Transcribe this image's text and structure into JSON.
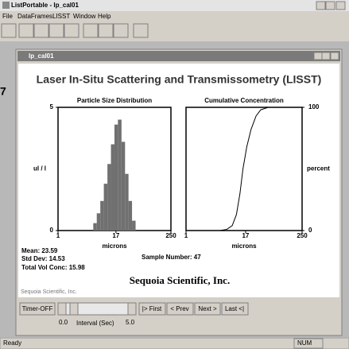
{
  "window": {
    "title": "ListPortable - lp_cal01"
  },
  "menu": [
    "File",
    "DataFrames",
    "LISST",
    "Window",
    "Help"
  ],
  "stray": "7",
  "inner_window": {
    "title": "lp_cal01"
  },
  "header": "Laser In-Situ Scattering and Transmissometry (LISST)",
  "chart_data": [
    {
      "type": "histogram",
      "title": "Particle Size Distribution",
      "ylabel": "ul / l",
      "xlabel": "microns",
      "log_x": true,
      "color": "#707070",
      "bins": [
        5.6,
        6.65,
        7.9,
        9.39,
        11.2,
        13.3,
        15.8,
        18.7,
        22.3,
        26.5,
        31.4,
        37.3,
        44.4
      ],
      "values": [
        0.3,
        0.7,
        1.2,
        1.9,
        2.7,
        3.5,
        4.3,
        4.5,
        3.6,
        2.3,
        1.2,
        0.4
      ],
      "xlim": [
        1,
        250
      ],
      "xticks": [
        1,
        17,
        250
      ],
      "ylim": [
        0,
        5
      ],
      "yticks": [
        0,
        5
      ],
      "y_axis": "left"
    },
    {
      "type": "line",
      "title": "Cumulative Concentration",
      "ylabel": "percent",
      "xlabel": "microns",
      "log_x": true,
      "color": "#000000",
      "x": [
        1,
        5,
        7,
        9,
        11,
        13,
        15,
        18,
        22,
        28,
        35,
        50,
        250
      ],
      "values": [
        0,
        0,
        1,
        4,
        13,
        30,
        50,
        68,
        82,
        93,
        98,
        100,
        100
      ],
      "xlim": [
        1,
        250
      ],
      "xticks": [
        1,
        17,
        250
      ],
      "ylim": [
        0,
        100
      ],
      "yticks": [
        0,
        100
      ],
      "y_axis": "right"
    }
  ],
  "stats": [
    "Mean: 23.59",
    "Std Dev: 14.53",
    "Total Vol Conc: 15.98"
  ],
  "sample": "Sample Number: 47",
  "company_small": "Sequoia Scientific, Inc.",
  "company": "Sequoia Scientific, Inc.",
  "controls": {
    "timer": "Timer-OFF",
    "first": "|> First",
    "prev": "< Prev",
    "next": "Next >",
    "last": "Last <|",
    "min": "0.0",
    "interval": "Interval (Sec)",
    "max": "5.0"
  },
  "status": {
    "text": "Ready",
    "num": "NUM"
  }
}
